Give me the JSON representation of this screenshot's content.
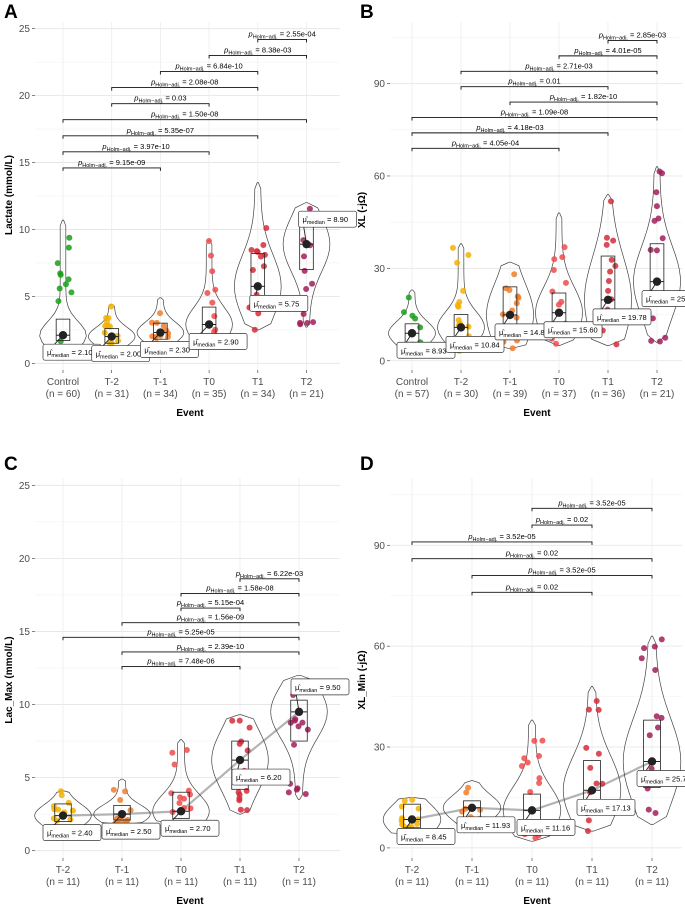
{
  "chart_data": [
    {
      "panel": "A",
      "type": "box-violin",
      "xlabel": "Event",
      "ylabel": "Lactate (mmol/L)",
      "ylim": [
        -0.5,
        25.5
      ],
      "yticks": [
        0,
        5,
        10,
        15,
        20,
        25
      ],
      "ytick_labels": [
        "0",
        "5",
        "10",
        "15",
        "20",
        "25"
      ],
      "categories": [
        "Control",
        "T-2",
        "T-1",
        "T0",
        "T1",
        "T2"
      ],
      "n_labels": [
        "(n = 60)",
        "(n = 31)",
        "(n = 34)",
        "(n = 35)",
        "(n = 34)",
        "(n = 21)"
      ],
      "colors": [
        "#1a9e1a",
        "#f2b200",
        "#f07e2b",
        "#ef4b4b",
        "#d42d3b",
        "#a01e5a"
      ],
      "medians": [
        2.1,
        2.0,
        2.3,
        2.9,
        5.75,
        8.9
      ],
      "median_labels": [
        "2.10",
        "2.00",
        "2.30",
        "2.90",
        "5.75",
        "8.90"
      ],
      "box_q1": [
        1.7,
        1.5,
        1.8,
        2.2,
        4.5,
        7.0
      ],
      "box_q3": [
        3.3,
        2.6,
        3.0,
        4.2,
        8.2,
        10.2
      ],
      "violin_max": [
        10.7,
        4.4,
        4.9,
        9.2,
        13.5,
        12.0
      ],
      "violin_min": [
        0.3,
        0.7,
        1.0,
        1.3,
        2.5,
        2.7
      ],
      "connect_medians": false,
      "comparisons": [
        {
          "from": 4,
          "to": 5,
          "p": "2.55e-04",
          "y": 24.2
        },
        {
          "from": 3,
          "to": 5,
          "p": "8.38e-03",
          "y": 23.0
        },
        {
          "from": 2,
          "to": 4,
          "p": "6.84e-10",
          "y": 21.8
        },
        {
          "from": 1,
          "to": 4,
          "p": "2.08e-08",
          "y": 20.6
        },
        {
          "from": 1,
          "to": 3,
          "p": "0.03",
          "y": 19.4
        },
        {
          "from": 0,
          "to": 5,
          "p": "1.50e-08",
          "y": 18.2
        },
        {
          "from": 0,
          "to": 4,
          "p": "5.35e-07",
          "y": 17.0
        },
        {
          "from": 0,
          "to": 3,
          "p": "3.97e-10",
          "y": 15.8
        },
        {
          "from": 0,
          "to": 2,
          "p": "9.15e-09",
          "y": 14.6
        }
      ]
    },
    {
      "panel": "B",
      "type": "box-violin",
      "xlabel": "Event",
      "ylabel": "XL (-jΩ)",
      "ylim": [
        -3,
        110
      ],
      "yticks": [
        0,
        30,
        60,
        90
      ],
      "ytick_labels": [
        "0",
        "30",
        "60",
        "90"
      ],
      "categories": [
        "Control",
        "T-2",
        "T-1",
        "T0",
        "T1",
        "T2"
      ],
      "n_labels": [
        "(n = 57)",
        "(n = 30)",
        "(n = 39)",
        "(n = 37)",
        "(n = 36)",
        "(n = 21)"
      ],
      "colors": [
        "#1a9e1a",
        "#f2b200",
        "#f07e2b",
        "#ef4b4b",
        "#d42d3b",
        "#a01e5a"
      ],
      "medians": [
        8.93,
        10.84,
        14.89,
        15.6,
        19.78,
        25.7
      ],
      "median_labels": [
        "8.93",
        "10.84",
        "14.89",
        "15.60",
        "19.78",
        "25.70"
      ],
      "box_q1": [
        6.0,
        7.0,
        8.0,
        9.0,
        12.0,
        20.0
      ],
      "box_q3": [
        12.0,
        15.0,
        24.0,
        22.0,
        34.0,
        38.0
      ],
      "violin_max": [
        23.0,
        38.0,
        32.0,
        48.0,
        54.0,
        63.0
      ],
      "violin_min": [
        2.0,
        3.0,
        4.0,
        5.0,
        5.0,
        6.0
      ],
      "connect_medians": false,
      "comparisons": [
        {
          "from": 4,
          "to": 5,
          "p": "2.85e-03",
          "y": 104
        },
        {
          "from": 3,
          "to": 5,
          "p": "4.01e-05",
          "y": 99
        },
        {
          "from": 1,
          "to": 5,
          "p": "2.71e-03",
          "y": 94
        },
        {
          "from": 1,
          "to": 4,
          "p": "0.01",
          "y": 89
        },
        {
          "from": 2,
          "to": 5,
          "p": "1.82e-10",
          "y": 84
        },
        {
          "from": 0,
          "to": 5,
          "p": "1.09e-08",
          "y": 79
        },
        {
          "from": 0,
          "to": 4,
          "p": "4.18e-03",
          "y": 74
        },
        {
          "from": 0,
          "to": 3,
          "p": "4.05e-04",
          "y": 69
        }
      ]
    },
    {
      "panel": "C",
      "type": "box-violin",
      "xlabel": "Event",
      "ylabel": "Lac_Max (mmol/L)",
      "ylim": [
        -0.5,
        25.5
      ],
      "yticks": [
        0,
        5,
        10,
        15,
        20,
        25
      ],
      "ytick_labels": [
        "0",
        "5",
        "10",
        "15",
        "20",
        "25"
      ],
      "categories": [
        "T-2",
        "T-1",
        "T0",
        "T1",
        "T2"
      ],
      "n_labels": [
        "(n = 11)",
        "(n = 11)",
        "(n = 11)",
        "(n = 11)",
        "(n = 11)"
      ],
      "colors": [
        "#f2b200",
        "#f07e2b",
        "#ef4b4b",
        "#d42d3b",
        "#a01e5a"
      ],
      "medians": [
        2.4,
        2.5,
        2.7,
        6.2,
        9.5
      ],
      "median_labels": [
        "2.40",
        "2.50",
        "2.70",
        "6.20",
        "9.50"
      ],
      "box_q1": [
        2.0,
        2.1,
        2.2,
        4.2,
        7.5
      ],
      "box_q3": [
        3.2,
        3.1,
        4.0,
        7.5,
        10.3
      ],
      "violin_max": [
        4.1,
        4.9,
        7.6,
        9.3,
        12.0
      ],
      "violin_min": [
        1.5,
        1.8,
        1.8,
        2.5,
        3.5
      ],
      "connect_medians": true,
      "comparisons": [
        {
          "from": 3,
          "to": 4,
          "p": "6.22e-03",
          "y": 18.6
        },
        {
          "from": 2,
          "to": 4,
          "p": "1.58e-08",
          "y": 17.6
        },
        {
          "from": 2,
          "to": 3,
          "p": "5.15e-04",
          "y": 16.6
        },
        {
          "from": 1,
          "to": 4,
          "p": "1.56e-09",
          "y": 15.6
        },
        {
          "from": 0,
          "to": 4,
          "p": "5.25e-05",
          "y": 14.6
        },
        {
          "from": 1,
          "to": 4,
          "p": "2.39e-10",
          "y": 13.6
        },
        {
          "from": 1,
          "to": 3,
          "p": "7.48e-06",
          "y": 12.6
        }
      ]
    },
    {
      "panel": "D",
      "type": "box-violin",
      "xlabel": "Event",
      "ylabel": "XL_Min (-jΩ)",
      "ylim": [
        -3,
        110
      ],
      "yticks": [
        0,
        30,
        60,
        90
      ],
      "ytick_labels": [
        "0",
        "30",
        "60",
        "90"
      ],
      "categories": [
        "T-2",
        "T-1",
        "T0",
        "T1",
        "T2"
      ],
      "n_labels": [
        "(n = 11)",
        "(n = 11)",
        "(n = 11)",
        "(n = 11)",
        "(n = 11)"
      ],
      "colors": [
        "#f2b200",
        "#f07e2b",
        "#ef4b4b",
        "#d42d3b",
        "#a01e5a"
      ],
      "medians": [
        8.45,
        11.93,
        11.16,
        17.13,
        25.7
      ],
      "median_labels": [
        "8.45",
        "11.93",
        "11.16",
        "17.13",
        "25.70"
      ],
      "box_q1": [
        6.0,
        8.0,
        5.0,
        10.0,
        18.0
      ],
      "box_q3": [
        13.0,
        14.0,
        16.0,
        26.0,
        38.0
      ],
      "violin_max": [
        15.0,
        20.0,
        38.0,
        48.0,
        63.0
      ],
      "violin_min": [
        4.0,
        5.0,
        2.0,
        5.0,
        7.0
      ],
      "connect_medians": true,
      "comparisons": [
        {
          "from": 2,
          "to": 4,
          "p": "3.52e-05",
          "y": 101
        },
        {
          "from": 2,
          "to": 3,
          "p": "0.02",
          "y": 96
        },
        {
          "from": 0,
          "to": 3,
          "p": "3.52e-05",
          "y": 91
        },
        {
          "from": 0,
          "to": 4,
          "p": "0.02",
          "y": 86
        },
        {
          "from": 1,
          "to": 4,
          "p": "3.52e-05",
          "y": 81
        },
        {
          "from": 1,
          "to": 3,
          "p": "0.02",
          "y": 76
        }
      ]
    }
  ]
}
